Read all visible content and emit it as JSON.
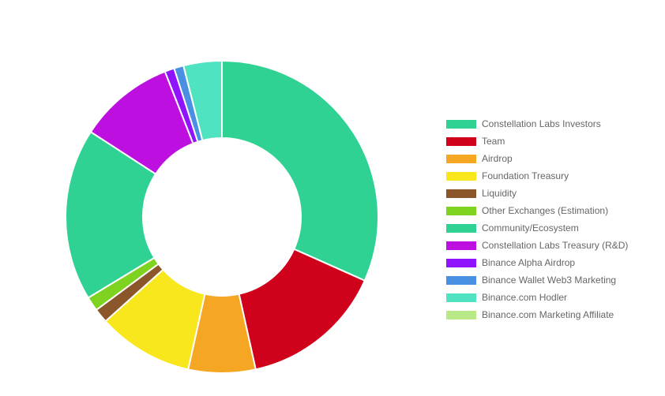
{
  "chart_data": {
    "type": "pie",
    "donut": true,
    "legend_position": "right",
    "title": "",
    "slices": [
      {
        "label": "Constellation Labs Investors",
        "value": 32.0,
        "color": "#2fd293"
      },
      {
        "label": "Team",
        "value": 15.0,
        "color": "#d0021b"
      },
      {
        "label": "Airdrop",
        "value": 7.0,
        "color": "#f5a623"
      },
      {
        "label": "Foundation Treasury",
        "value": 10.0,
        "color": "#f8e71c"
      },
      {
        "label": "Liquidity",
        "value": 1.5,
        "color": "#8b572a"
      },
      {
        "label": "Other Exchanges (Estimation)",
        "value": 1.5,
        "color": "#7ed321"
      },
      {
        "label": "Community/Ecosystem",
        "value": 18.0,
        "color": "#2fd293"
      },
      {
        "label": "Constellation Labs Treasury (R&D)",
        "value": 10.0,
        "color": "#bd10e0"
      },
      {
        "label": "Binance Alpha Airdrop",
        "value": 1.0,
        "color": "#9013fe"
      },
      {
        "label": "Binance Wallet Web3 Marketing",
        "value": 1.0,
        "color": "#4a90e2"
      },
      {
        "label": "Binance.com Hodler",
        "value": 4.0,
        "color": "#50e3c2"
      },
      {
        "label": "Binance.com Marketing Affiliate",
        "value": 0.0,
        "color": "#b8e986"
      }
    ]
  }
}
